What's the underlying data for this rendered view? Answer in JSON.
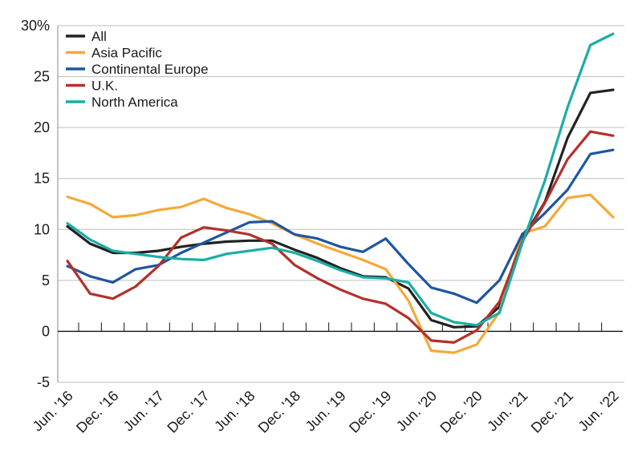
{
  "chart_data": {
    "type": "line",
    "title": "",
    "xlabel": "",
    "ylabel": "",
    "ylim": [
      -5,
      30
    ],
    "y_ticks": [
      {
        "value": 30,
        "label": "30%"
      },
      {
        "value": 25,
        "label": "25"
      },
      {
        "value": 20,
        "label": "20"
      },
      {
        "value": 15,
        "label": "15"
      },
      {
        "value": 10,
        "label": "10"
      },
      {
        "value": 5,
        "label": "5"
      },
      {
        "value": 0,
        "label": "0"
      },
      {
        "value": -5,
        "label": "-5"
      }
    ],
    "grid": true,
    "legend_position": "top-left",
    "categories": [
      "Jun. '16",
      "Sep. '16",
      "Dec. '16",
      "Mar. '17",
      "Jun. '17",
      "Sep. '17",
      "Dec. '17",
      "Mar. '18",
      "Jun. '18",
      "Sep. '18",
      "Dec. '18",
      "Mar. '19",
      "Jun. '19",
      "Sep. '19",
      "Dec. '19",
      "Mar. '20",
      "Jun. '20",
      "Sep. '20",
      "Dec. '20",
      "Mar. '21",
      "Jun. '21",
      "Sep. '21",
      "Dec. '21",
      "Mar. '22",
      "Jun. '22"
    ],
    "x_tick_labels": [
      {
        "index": 0,
        "label": "Jun. '16"
      },
      {
        "index": 2,
        "label": "Dec. '16"
      },
      {
        "index": 4,
        "label": "Jun. '17"
      },
      {
        "index": 6,
        "label": "Dec. '17"
      },
      {
        "index": 8,
        "label": "Jun. '18"
      },
      {
        "index": 10,
        "label": "Dec. '18"
      },
      {
        "index": 12,
        "label": "Jun. '19"
      },
      {
        "index": 14,
        "label": "Dec. '19"
      },
      {
        "index": 16,
        "label": "Jun. '20"
      },
      {
        "index": 18,
        "label": "Dec. '20"
      },
      {
        "index": 20,
        "label": "Jun. '21"
      },
      {
        "index": 22,
        "label": "Dec. '21"
      },
      {
        "index": 24,
        "label": "Jun. '22"
      }
    ],
    "series": [
      {
        "name": "All",
        "color": "#222222",
        "values": [
          10.3,
          8.6,
          7.7,
          7.7,
          7.9,
          8.3,
          8.6,
          8.8,
          8.9,
          8.9,
          8.0,
          7.2,
          6.2,
          5.4,
          5.3,
          4.2,
          1.1,
          0.4,
          0.5,
          2.4,
          9.0,
          12.7,
          19.0,
          23.4,
          23.7
        ]
      },
      {
        "name": "Asia Pacific",
        "color": "#f4a93a",
        "values": [
          13.2,
          12.5,
          11.2,
          11.4,
          11.9,
          12.2,
          13.0,
          12.1,
          11.5,
          10.6,
          9.5,
          8.6,
          7.8,
          7.0,
          6.1,
          3.0,
          -1.9,
          -2.1,
          -1.3,
          1.9,
          9.6,
          10.3,
          13.1,
          13.4,
          11.2
        ]
      },
      {
        "name": "Continental Europe",
        "color": "#1e56a0",
        "values": [
          6.4,
          5.4,
          4.8,
          6.1,
          6.5,
          7.7,
          8.7,
          9.7,
          10.7,
          10.8,
          9.5,
          9.1,
          8.3,
          7.8,
          9.1,
          6.6,
          4.3,
          3.7,
          2.8,
          5.0,
          9.5,
          11.6,
          13.9,
          17.4,
          17.8
        ]
      },
      {
        "name": "U.K.",
        "color": "#b5302a",
        "values": [
          6.9,
          3.7,
          3.2,
          4.4,
          6.4,
          9.2,
          10.2,
          9.9,
          9.5,
          8.6,
          6.5,
          5.2,
          4.1,
          3.2,
          2.7,
          1.3,
          -0.9,
          -1.1,
          0.1,
          2.9,
          8.8,
          12.6,
          16.9,
          19.6,
          19.2
        ]
      },
      {
        "name": "North America",
        "color": "#1bada5",
        "values": [
          10.6,
          9.0,
          7.9,
          7.6,
          7.3,
          7.1,
          7.0,
          7.6,
          7.9,
          8.2,
          7.7,
          6.9,
          6.0,
          5.3,
          5.2,
          4.8,
          1.8,
          0.9,
          0.6,
          1.8,
          8.6,
          14.8,
          22.0,
          28.1,
          29.2
        ]
      }
    ]
  }
}
